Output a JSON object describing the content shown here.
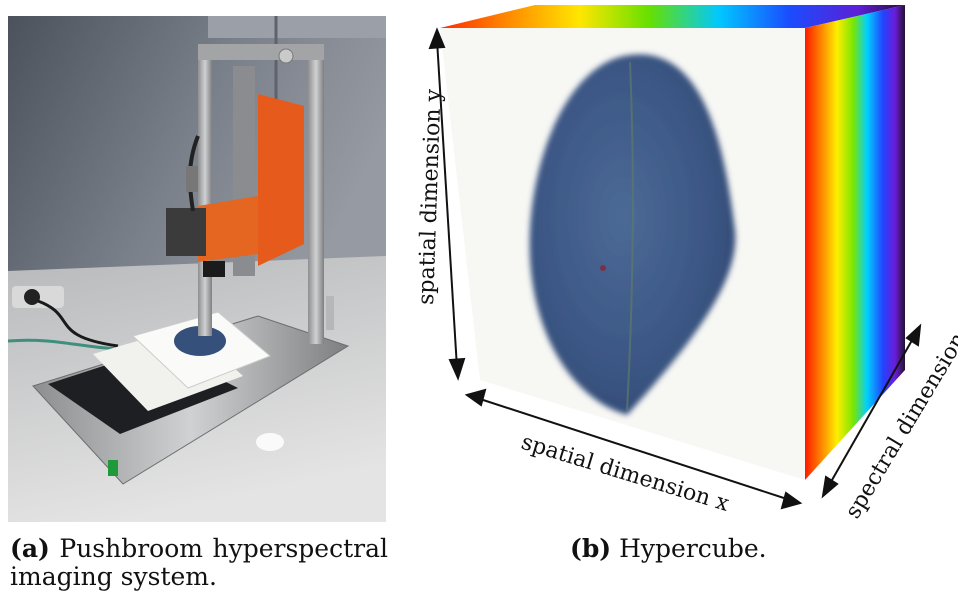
{
  "figure": {
    "panel_a": {
      "caption_label": "(a)",
      "caption_text": "Pushbroom hyperspectral imaging system.",
      "colors": {
        "wall": "#6e7480",
        "casing": "#e65a1c",
        "frame": "#a8a9ab",
        "table": "#cfcfcf",
        "leaf": "#35507a"
      }
    },
    "panel_b": {
      "caption_label": "(b)",
      "caption_text": "Hypercube.",
      "axis_y": "spatial dimension y",
      "axis_x": "spatial dimension x",
      "axis_z": "spectral dimension z",
      "colors": {
        "leaf": "#3b5684",
        "face": "#f7f7f4"
      }
    }
  }
}
